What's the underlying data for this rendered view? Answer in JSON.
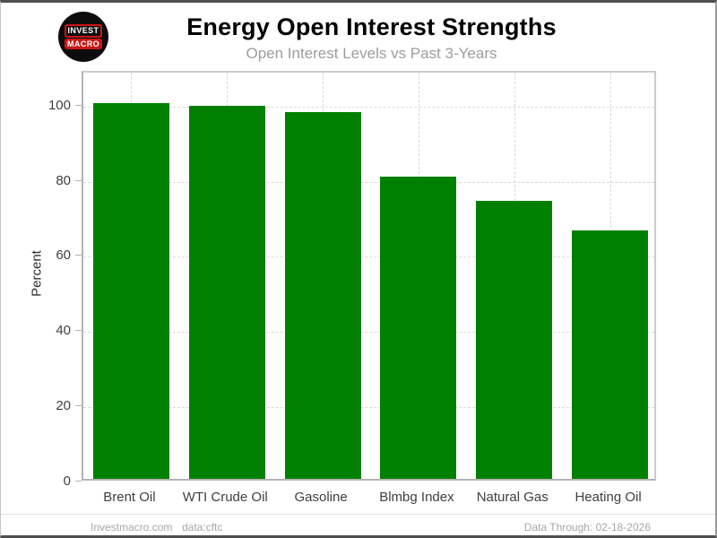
{
  "header": {
    "title": "Energy Open Interest Strengths",
    "subtitle": "Open Interest Levels vs Past 3-Years",
    "logo": {
      "line1": "INVEST",
      "line2": "MACRO"
    }
  },
  "chart_data": {
    "type": "bar",
    "categories": [
      "Brent Oil",
      "WTI Crude Oil",
      "Gasoline",
      "Blmbg Index",
      "Natural Gas",
      "Heating Oil"
    ],
    "values": [
      100,
      99.2,
      97.5,
      80.5,
      74,
      66
    ],
    "title": "Energy Open Interest Strengths",
    "subtitle": "Open Interest Levels vs Past 3-Years",
    "xlabel": "",
    "ylabel": "Percent",
    "ylim": [
      0,
      109
    ],
    "yticks": [
      0,
      20,
      40,
      60,
      80,
      100
    ],
    "grid": true,
    "legend": "none",
    "bar_color": "#008000"
  },
  "footer": {
    "site": "Investmacro.com",
    "source": "data:cftc",
    "data_through": "Data Through: 02-18-2026"
  },
  "colors": {
    "bar": "#008000",
    "logo_accent": "#cc1616",
    "subtitle_text": "#9d9d9d",
    "axis_text": "#3f3f3f",
    "footer_text": "#a6a6a6",
    "gridline": "#d9d9d9"
  }
}
